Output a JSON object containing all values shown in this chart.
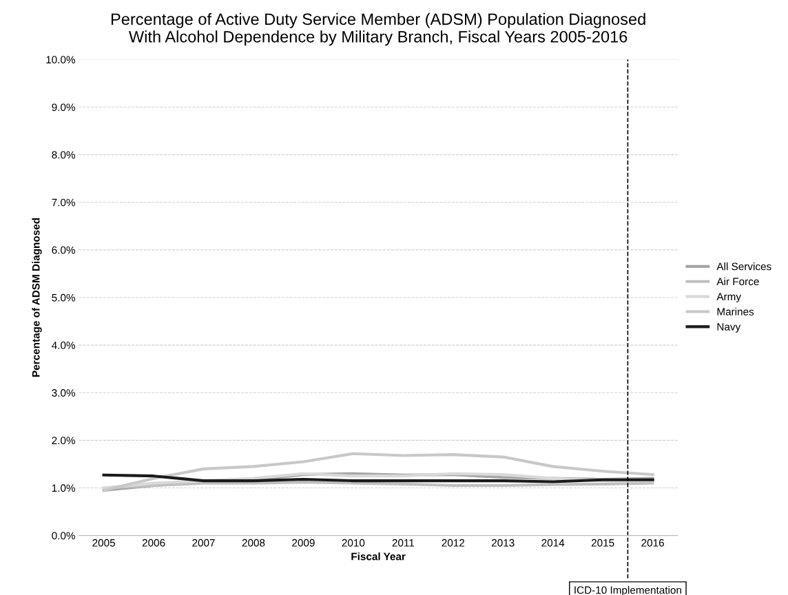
{
  "chart_data": {
    "type": "line",
    "title": "Percentage of Active Duty Service Member (ADSM) Population Diagnosed\nWith Alcohol Dependence by Military Branch, Fiscal Years 2005-2016",
    "xlabel": "Fiscal Year",
    "ylabel": "Percentage of ADSM Diagnosed",
    "x": [
      2005,
      2006,
      2007,
      2008,
      2009,
      2010,
      2011,
      2012,
      2013,
      2014,
      2015,
      2016
    ],
    "series": [
      {
        "name": "All Services",
        "color": "#a6a6a6",
        "values": [
          0.95,
          1.05,
          1.12,
          1.17,
          1.28,
          1.3,
          1.27,
          1.28,
          1.22,
          1.2,
          1.18,
          1.2
        ]
      },
      {
        "name": "Air Force",
        "color": "#bfbfbf",
        "values": [
          1.0,
          1.05,
          1.1,
          1.1,
          1.12,
          1.1,
          1.08,
          1.05,
          1.05,
          1.07,
          1.08,
          1.1
        ]
      },
      {
        "name": "Army",
        "color": "#d9d9d9",
        "values": [
          1.0,
          1.1,
          1.15,
          1.2,
          1.3,
          1.25,
          1.25,
          1.3,
          1.28,
          1.2,
          1.15,
          1.15
        ]
      },
      {
        "name": "Marines",
        "color": "#c8c8c8",
        "values": [
          0.95,
          1.2,
          1.4,
          1.45,
          1.55,
          1.72,
          1.68,
          1.7,
          1.65,
          1.45,
          1.35,
          1.28
        ]
      },
      {
        "name": "Navy",
        "color": "#1a1a1a",
        "values": [
          1.27,
          1.25,
          1.15,
          1.15,
          1.18,
          1.15,
          1.15,
          1.15,
          1.15,
          1.13,
          1.17,
          1.17
        ]
      }
    ],
    "xlim": [
      2004.5,
      2016.5
    ],
    "xticks": [
      2005,
      2006,
      2007,
      2008,
      2009,
      2010,
      2011,
      2012,
      2013,
      2014,
      2015,
      2016
    ],
    "ylim": [
      0,
      10
    ],
    "yticks": [
      {
        "value": 0,
        "label": "0.0%"
      },
      {
        "value": 1,
        "label": "1.0%"
      },
      {
        "value": 2,
        "label": "2.0%"
      },
      {
        "value": 3,
        "label": "3.0%"
      },
      {
        "value": 4,
        "label": "4.0%"
      },
      {
        "value": 5,
        "label": "5.0%"
      },
      {
        "value": 6,
        "label": "6.0%"
      },
      {
        "value": 7,
        "label": "7.0%"
      },
      {
        "value": 8,
        "label": "8.0%"
      },
      {
        "value": 9,
        "label": "9.0%"
      },
      {
        "value": 10,
        "label": "10.0%"
      }
    ],
    "ref_lines": [
      {
        "axis": "x",
        "value": 2015.5,
        "label": "ICD-10 Implementation",
        "color": "#000000",
        "line_style": "dashed"
      }
    ],
    "grid": "y",
    "legend": "right",
    "marker": "none",
    "line_style": "solid"
  }
}
